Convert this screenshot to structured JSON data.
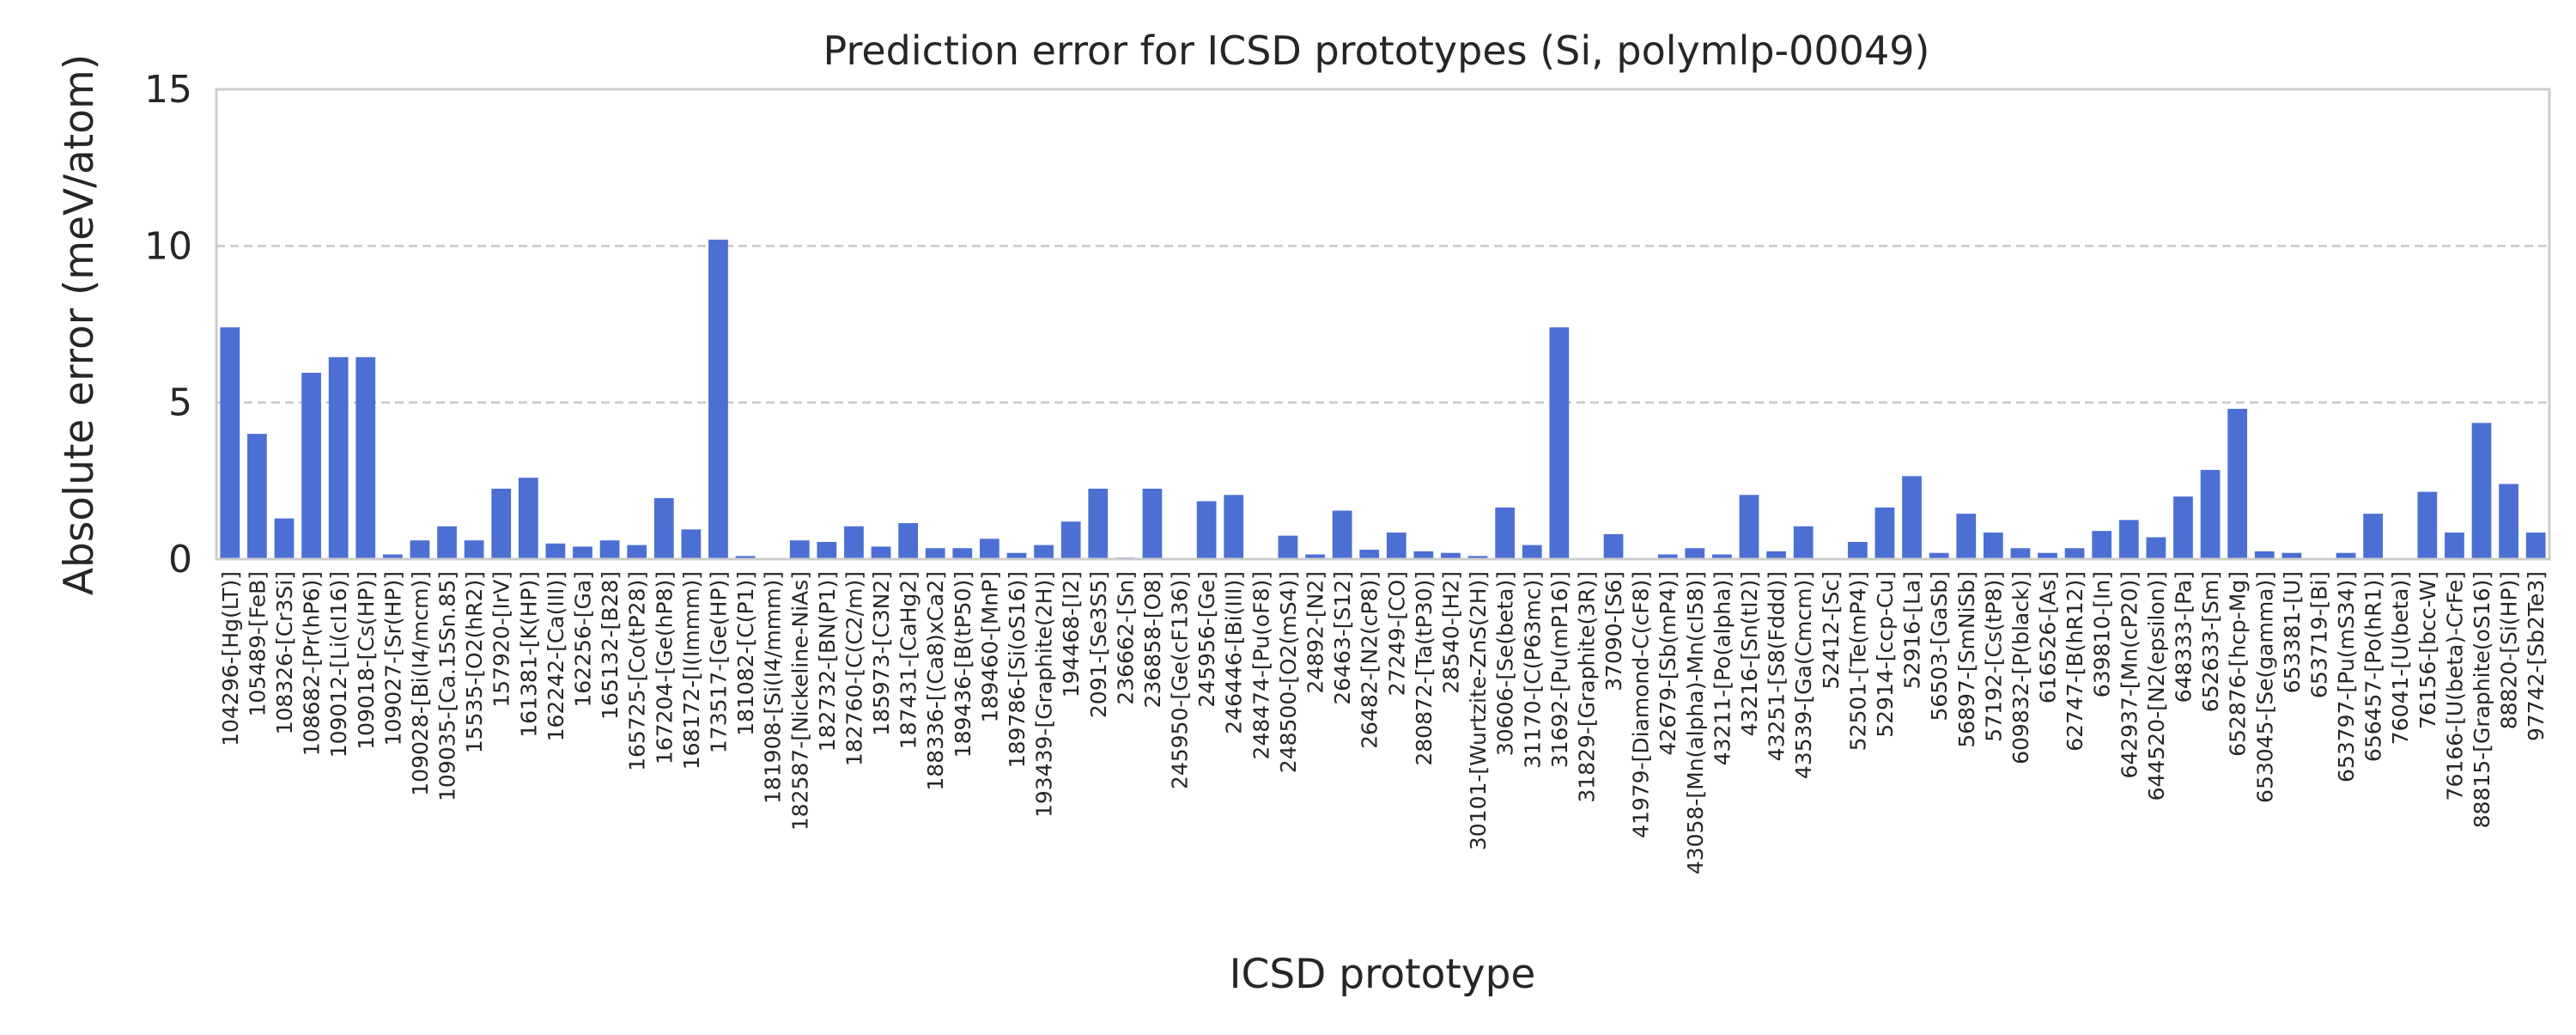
{
  "chart_data": {
    "type": "bar",
    "title": "Prediction error for ICSD prototypes (Si, polymlp-00049)",
    "xlabel": "ICSD prototype",
    "ylabel": "Absolute error (meV/atom)",
    "ylim": [
      0,
      15
    ],
    "yticks": [
      0,
      5,
      10,
      15
    ],
    "grid": "horizontal dashed at y ticks",
    "bar_color": "#4c6fd4",
    "categories": [
      "104296-[Hg(LT)]",
      "105489-[FeB]",
      "108326-[Cr3Si]",
      "108682-[Pr(hP6)]",
      "109012-[Li(cI16)]",
      "109018-[Cs(HP)]",
      "109027-[Sr(HP)]",
      "109028-[Bi(I4/mcm)]",
      "109035-[Ca.15Sn.85]",
      "15535-[O2(hR2)]",
      "157920-[IrV]",
      "161381-[K(HP)]",
      "162242-[Ca(III)]",
      "162256-[Ga]",
      "165132-[B28]",
      "165725-[Co(tP28)]",
      "167204-[Ge(hP8)]",
      "168172-[I(Immm)]",
      "173517-[Ge(HP)]",
      "181082-[C(P1)]",
      "181908-[Si(I4/mmm)]",
      "182587-[Nickeline-NiAs]",
      "182732-[BN(P1)]",
      "182760-[C(C2/m)]",
      "185973-[C3N2]",
      "187431-[CaHg2]",
      "188336-[(Ca8)xCa2]",
      "189436-[B(tP50)]",
      "189460-[MnP]",
      "189786-[Si(oS16)]",
      "193439-[Graphite(2H)]",
      "194468-[I2]",
      "2091-[Se3S5]",
      "236662-[Sn]",
      "236858-[O8]",
      "245950-[Ge(cF136)]",
      "245956-[Ge]",
      "246446-[Bi(III)]",
      "248474-[Pu(oF8)]",
      "248500-[O2(mS4)]",
      "24892-[N2]",
      "26463-[S12]",
      "26482-[N2(cP8)]",
      "27249-[CO]",
      "280872-[Ta(tP30)]",
      "28540-[H2]",
      "30101-[Wurtzite-ZnS(2H)]",
      "30606-[Se(beta)]",
      "31170-[C(P63mc)]",
      "31692-[Pu(mP16)]",
      "31829-[Graphite(3R)]",
      "37090-[S6]",
      "41979-[Diamond-C(cF8)]",
      "42679-[Sb(mP4)]",
      "43058-[Mn(alpha)-Mn(cI58)]",
      "43211-[Po(alpha)]",
      "43216-[Sn(tI2)]",
      "43251-[S8(Fddd)]",
      "43539-[Ga(Cmcm)]",
      "52412-[Sc]",
      "52501-[Te(mP4)]",
      "52914-[ccp-Cu]",
      "52916-[La]",
      "56503-[GaSb]",
      "56897-[SmNiSb]",
      "57192-[Cs(tP8)]",
      "609832-[P(black)]",
      "616526-[As]",
      "62747-[B(hR12)]",
      "639810-[In]",
      "642937-[Mn(cP20)]",
      "644520-[N2(epsilon)]",
      "648333-[Pa]",
      "652633-[Sm]",
      "652876-[hcp-Mg]",
      "653045-[Se(gamma)]",
      "653381-[U]",
      "653719-[Bi]",
      "653797-[Pu(mS34)]",
      "656457-[Po(hR1)]",
      "76041-[U(beta)]",
      "76156-[bcc-W]",
      "76166-[U(beta)-CrFe]",
      "88815-[Graphite(oS16)]",
      "88820-[Si(HP)]",
      "97742-[Sb2Te3]"
    ],
    "values": [
      7.4,
      4.0,
      1.3,
      5.95,
      6.45,
      6.45,
      0.15,
      0.6,
      1.05,
      0.6,
      2.25,
      2.6,
      0.5,
      0.4,
      0.6,
      0.45,
      1.95,
      0.95,
      10.2,
      0.1,
      0.0,
      0.6,
      0.55,
      1.05,
      0.4,
      1.15,
      0.35,
      0.35,
      0.65,
      0.2,
      0.45,
      1.2,
      2.25,
      0.05,
      2.25,
      0.0,
      1.85,
      2.05,
      0.0,
      0.75,
      0.15,
      1.55,
      0.3,
      0.85,
      0.25,
      0.2,
      0.1,
      1.65,
      0.45,
      7.4,
      0.0,
      0.8,
      0.0,
      0.15,
      0.35,
      0.15,
      2.05,
      0.25,
      1.05,
      0.0,
      0.55,
      1.65,
      2.65,
      0.2,
      1.45,
      0.85,
      0.35,
      0.2,
      0.35,
      0.9,
      1.25,
      0.7,
      2.0,
      2.85,
      4.8,
      0.25,
      0.2,
      0.0,
      0.2,
      1.45,
      0.0,
      2.15,
      0.85,
      4.35,
      2.4,
      0.85
    ]
  }
}
